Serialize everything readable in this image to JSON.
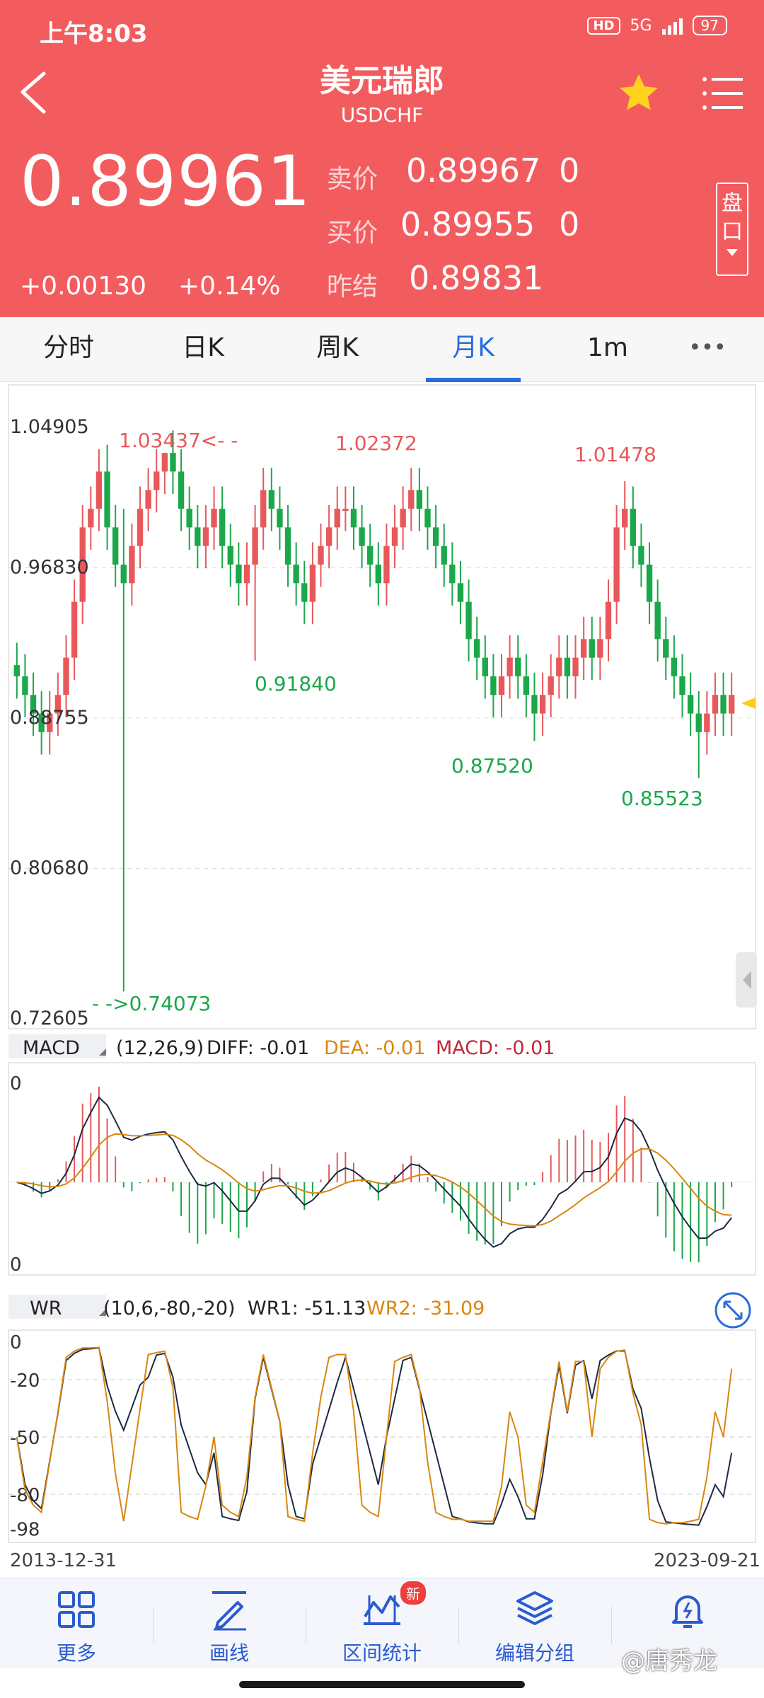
{
  "status_bar": {
    "time": "上午8:03",
    "hd": "HD",
    "network": "5G",
    "battery": "97"
  },
  "header": {
    "title": "美元瑞郎",
    "symbol": "USDCHF",
    "last_price": "0.89961",
    "change": "+0.00130",
    "change_pct": "+0.14%",
    "ask_label": "卖价",
    "ask_price": "0.89967",
    "ask_size": "0",
    "bid_label": "买价",
    "bid_price": "0.89955",
    "bid_size": "0",
    "prev_label": "昨结",
    "prev_close": "0.89831",
    "pankou_label_1": "盘",
    "pankou_label_2": "口"
  },
  "tabs": [
    {
      "label": "分时",
      "active": false
    },
    {
      "label": "日K",
      "active": false
    },
    {
      "label": "周K",
      "active": false
    },
    {
      "label": "月K",
      "active": true
    },
    {
      "label": "1m",
      "active": false
    },
    {
      "label": "•••",
      "active": false
    }
  ],
  "chart_data": {
    "type": "candlestick",
    "timeframe": "月K",
    "ylim": [
      0.72605,
      1.04905
    ],
    "y_ticks": [
      "1.04905",
      "0.96830",
      "0.88755",
      "0.80680",
      "0.72605"
    ],
    "x_start": "2013-12-31",
    "x_end": "2023-09-21",
    "annotations": [
      {
        "text": "1.03437<- -",
        "value": 1.03437,
        "kind": "high"
      },
      {
        "text": "1.02372",
        "value": 1.02372,
        "kind": "high"
      },
      {
        "text": "1.01478",
        "value": 1.01478,
        "kind": "high"
      },
      {
        "text": "0.91840",
        "value": 0.9184,
        "kind": "low"
      },
      {
        "text": "0.87520",
        "value": 0.8752,
        "kind": "low"
      },
      {
        "text": "0.85523",
        "value": 0.85523,
        "kind": "low"
      },
      {
        "text": "- ->0.74073",
        "value": 0.74073,
        "kind": "low"
      }
    ],
    "close_approx": [
      0.91,
      0.9,
      0.89,
      0.88,
      0.89,
      0.9,
      0.92,
      0.95,
      0.99,
      1.0,
      1.02,
      0.99,
      0.97,
      0.96,
      0.98,
      1.0,
      1.01,
      1.02,
      1.03,
      1.02,
      1.0,
      0.99,
      0.98,
      0.99,
      1.0,
      0.98,
      0.97,
      0.96,
      0.97,
      0.99,
      1.01,
      1.0,
      0.99,
      0.97,
      0.96,
      0.95,
      0.97,
      0.98,
      0.99,
      1.0,
      1.0,
      0.99,
      0.98,
      0.97,
      0.96,
      0.98,
      0.99,
      1.0,
      1.01,
      1.0,
      0.99,
      0.98,
      0.97,
      0.96,
      0.95,
      0.93,
      0.92,
      0.91,
      0.9,
      0.91,
      0.92,
      0.91,
      0.9,
      0.89,
      0.9,
      0.91,
      0.92,
      0.91,
      0.92,
      0.93,
      0.92,
      0.93,
      0.95,
      0.99,
      1.0,
      0.98,
      0.97,
      0.95,
      0.93,
      0.92,
      0.91,
      0.9,
      0.89,
      0.88,
      0.89,
      0.9,
      0.89,
      0.9
    ],
    "indicators": {
      "macd": {
        "name": "MACD",
        "params": "(12,26,9)",
        "diff": "DIFF: -0.01",
        "dea": "DEA: -0.01",
        "macd": "MACD: -0.01",
        "axis_top": "0",
        "axis_bottom": "0"
      },
      "wr": {
        "name": "WR",
        "params": "(10,6,-80,-20)",
        "wr1": "WR1: -51.13",
        "wr2": "WR2: -31.09",
        "ticks": [
          "0",
          "-20",
          "-50",
          "-80",
          "-98"
        ]
      }
    }
  },
  "toolbar": [
    {
      "label": "更多",
      "icon": "grid-icon"
    },
    {
      "label": "画线",
      "icon": "pen-icon"
    },
    {
      "label": "区间统计",
      "icon": "range-stats-icon",
      "badge": "新"
    },
    {
      "label": "编辑分组",
      "icon": "layers-icon"
    },
    {
      "label": "",
      "icon": "bell-icon"
    }
  ],
  "watermark": "@唐秀龙",
  "colors": {
    "header_bg": "#f35c5e",
    "up": "#e8585b",
    "down": "#1aa84a",
    "active": "#2a6dd9",
    "dea": "#d9860f",
    "macd_label": "#c0283b"
  }
}
